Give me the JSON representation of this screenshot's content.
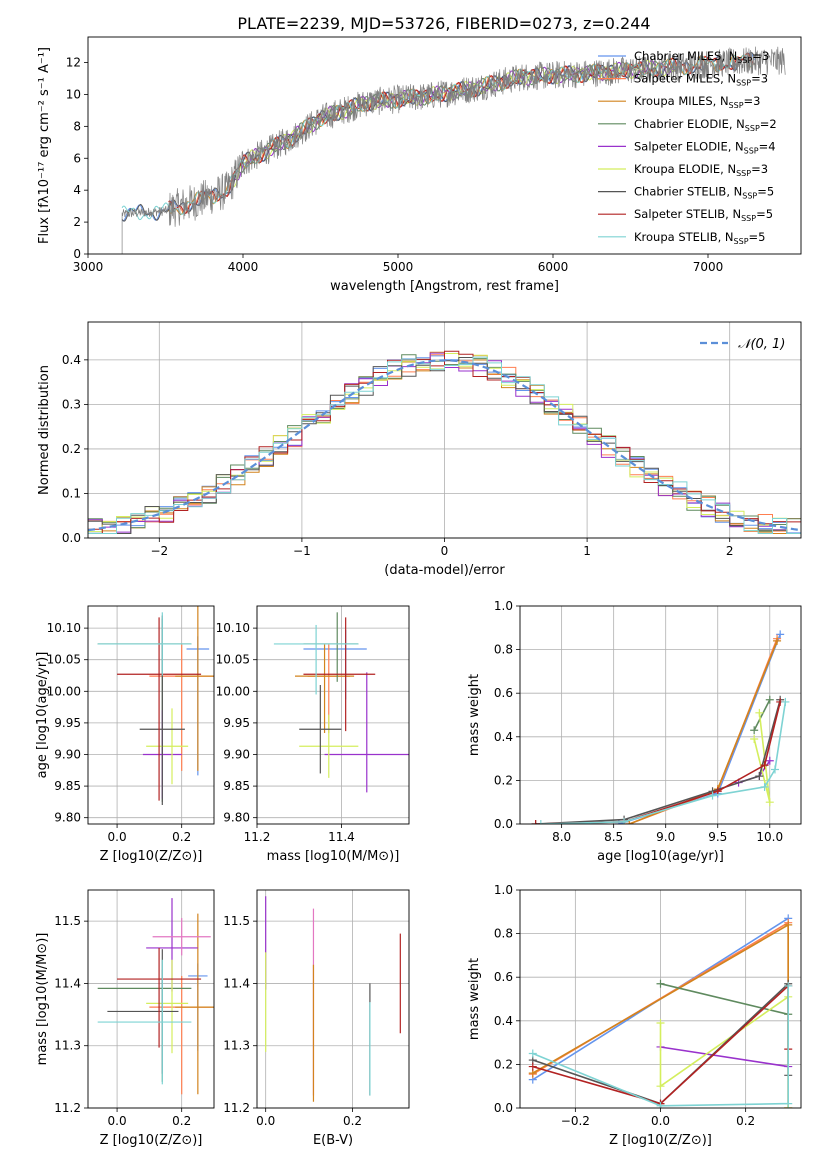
{
  "figure": {
    "title": "PLATE=2239, MJD=53726, FIBERID=0273, z=0.244"
  },
  "chart_data": [
    {
      "id": "spectrum",
      "type": "line",
      "xlabel": "wavelength [Angstrom, rest frame]",
      "ylabel": "Flux [fλ10⁻¹⁷ erg cm⁻² s⁻¹ A⁻¹]",
      "xlim": [
        3000,
        7600
      ],
      "ylim": [
        0,
        13.6
      ],
      "xticks": [
        3000,
        4000,
        5000,
        6000,
        7000
      ],
      "yticks": [
        0,
        2,
        4,
        6,
        8,
        10,
        12
      ],
      "grid": false,
      "legend_position": "right",
      "legend": [
        {
          "label": "Chabrier MILES, N",
          "sub": "SSP",
          "suffix": "=3",
          "color": "#6495ed"
        },
        {
          "label": "Salpeter MILES, N",
          "sub": "SSP",
          "suffix": "=3",
          "color": "#ff7f50"
        },
        {
          "label": "Kroupa MILES, N",
          "sub": "SSP",
          "suffix": "=3",
          "color": "#d2841e"
        },
        {
          "label": "Chabrier ELODIE, N",
          "sub": "SSP",
          "suffix": "=2",
          "color": "#5f8a5f"
        },
        {
          "label": "Salpeter ELODIE, N",
          "sub": "SSP",
          "suffix": "=4",
          "color": "#9932cc"
        },
        {
          "label": "Kroupa ELODIE, N",
          "sub": "SSP",
          "suffix": "=3",
          "color": "#d4ee5e"
        },
        {
          "label": "Chabrier STELIB, N",
          "sub": "SSP",
          "suffix": "=5",
          "color": "#555555"
        },
        {
          "label": "Salpeter STELIB, N",
          "sub": "SSP",
          "suffix": "=5",
          "color": "#b22222"
        },
        {
          "label": "Kroupa STELIB, N",
          "sub": "SSP",
          "suffix": "=5",
          "color": "#7ed3d3"
        }
      ],
      "data_color": "#808080",
      "continuum": [
        [
          3220,
          2.5
        ],
        [
          3500,
          2.7
        ],
        [
          3700,
          3.3
        ],
        [
          3900,
          4.0
        ],
        [
          4000,
          5.7
        ],
        [
          4300,
          7.2
        ],
        [
          4500,
          8.5
        ],
        [
          4800,
          9.5
        ],
        [
          5200,
          9.9
        ],
        [
          5500,
          10.4
        ],
        [
          5800,
          11.1
        ],
        [
          6200,
          11.3
        ],
        [
          6600,
          11.6
        ],
        [
          7000,
          11.9
        ],
        [
          7300,
          12.1
        ]
      ],
      "model_ranges": [
        {
          "from": 3220,
          "to": 7300
        },
        {
          "from": 3520,
          "to": 7300
        },
        {
          "from": 3520,
          "to": 7300
        },
        {
          "from": 3930,
          "to": 6800
        },
        {
          "from": 3930,
          "to": 6800
        },
        {
          "from": 3930,
          "to": 6800
        },
        {
          "from": 3220,
          "to": 7300
        },
        {
          "from": 3520,
          "to": 7300
        },
        {
          "from": 3220,
          "to": 7300
        }
      ]
    },
    {
      "id": "residuals",
      "type": "line",
      "xlabel": "(data-model)/error",
      "ylabel": "Normed distribution",
      "xlim": [
        -2.5,
        2.5
      ],
      "ylim": [
        0,
        0.485
      ],
      "xticks": [
        -2,
        -1,
        0,
        1,
        2
      ],
      "yticks": [
        0.0,
        0.1,
        0.2,
        0.3,
        0.4
      ],
      "grid": true,
      "legend_position": "top-right",
      "reference": {
        "label": "𝒩(0, 1)",
        "mean": 0,
        "sigma": 1,
        "color": "#5b8fd8"
      },
      "hist_colors": [
        "#6495ed",
        "#ff7f50",
        "#d2841e",
        "#5f8a5f",
        "#9932cc",
        "#d4ee5e",
        "#555555",
        "#b22222",
        "#7ed3d3"
      ]
    },
    {
      "id": "age_vs_Z",
      "type": "scatter",
      "xlabel": "Z [log10(Z/Z⊙)]",
      "ylabel": "age  [log10(age/yr)]",
      "xlim": [
        -0.09,
        0.3
      ],
      "ylim": [
        9.79,
        10.135
      ],
      "xticks": [
        0.0,
        0.2
      ],
      "yticks": [
        9.8,
        9.85,
        9.9,
        9.95,
        10.0,
        10.05,
        10.1
      ],
      "grid": true,
      "points": [
        {
          "x": 0.25,
          "y": 10.067,
          "xerr": [
            0.035,
            0.035
          ],
          "yerr": [
            0.2,
            0.02
          ],
          "color": "#6495ed"
        },
        {
          "x": 0.2,
          "y": 10.024,
          "xerr": [
            0.1,
            0.1
          ],
          "yerr": [
            0.15,
            0.05
          ],
          "color": "#ff7f50"
        },
        {
          "x": 0.25,
          "y": 10.024,
          "xerr": [
            0.07,
            0.07
          ],
          "yerr": [
            0.15,
            0.15
          ],
          "color": "#d2841e"
        },
        {
          "x": 0.14,
          "y": 10.075,
          "xerr": [
            0.2,
            0.09
          ],
          "yerr": [
            0.25,
            0.04
          ],
          "color": "#5f8a5f"
        },
        {
          "x": 0.14,
          "y": 9.9,
          "xerr": [
            0.06,
            0.06
          ],
          "yerr": [
            0.07,
            0.07
          ],
          "color": "#9932cc"
        },
        {
          "x": 0.17,
          "y": 9.913,
          "xerr": [
            0.08,
            0.05
          ],
          "yerr": [
            0.06,
            0.06
          ],
          "color": "#d4ee5e"
        },
        {
          "x": 0.14,
          "y": 9.94,
          "xerr": [
            0.07,
            0.07
          ],
          "yerr": [
            0.12,
            0.18
          ],
          "color": "#555555"
        },
        {
          "x": 0.13,
          "y": 10.027,
          "xerr": [
            0.13,
            0.13
          ],
          "yerr": [
            0.2,
            0.09
          ],
          "color": "#b22222"
        },
        {
          "x": 0.14,
          "y": 10.075,
          "xerr": [
            0.2,
            0.09
          ],
          "yerr": [
            0.05,
            0.05
          ],
          "color": "#7ed3d3"
        }
      ]
    },
    {
      "id": "age_vs_mass",
      "type": "scatter",
      "xlabel": "mass [log10(M/M⊙)]",
      "ylabel": "",
      "xlim": [
        11.2,
        11.56
      ],
      "ylim": [
        9.79,
        10.135
      ],
      "xticks": [
        11.2,
        11.4
      ],
      "yticks": [
        9.8,
        9.85,
        9.9,
        9.95,
        10.0,
        10.05,
        10.1
      ],
      "grid": true,
      "points": [
        {
          "x": 11.41,
          "y": 10.067,
          "xerr": [
            0.1,
            0.05
          ],
          "yerr": [
            0.08,
            0.03
          ],
          "color": "#6495ed"
        },
        {
          "x": 11.37,
          "y": 10.024,
          "xerr": [
            0.05,
            0.05
          ],
          "yerr": [
            0.09,
            0.05
          ],
          "color": "#ff7f50"
        },
        {
          "x": 11.36,
          "y": 10.024,
          "xerr": [
            0.07,
            0.07
          ],
          "yerr": [
            0.09,
            0.05
          ],
          "color": "#d2841e"
        },
        {
          "x": 11.39,
          "y": 10.075,
          "xerr": [
            0.08,
            0.05
          ],
          "yerr": [
            0.06,
            0.05
          ],
          "color": "#5f8a5f"
        },
        {
          "x": 11.46,
          "y": 9.9,
          "xerr": [
            0.1,
            0.1
          ],
          "yerr": [
            0.06,
            0.13
          ],
          "color": "#9932cc"
        },
        {
          "x": 11.37,
          "y": 9.913,
          "xerr": [
            0.07,
            0.07
          ],
          "yerr": [
            0.05,
            0.05
          ],
          "color": "#d4ee5e"
        },
        {
          "x": 11.35,
          "y": 9.94,
          "xerr": [
            0.05,
            0.05
          ],
          "yerr": [
            0.07,
            0.07
          ],
          "color": "#555555"
        },
        {
          "x": 11.41,
          "y": 10.027,
          "xerr": [
            0.1,
            0.07
          ],
          "yerr": [
            0.09,
            0.09
          ],
          "color": "#b22222"
        },
        {
          "x": 11.34,
          "y": 10.075,
          "xerr": [
            0.1,
            0.1
          ],
          "yerr": [
            0.08,
            0.03
          ],
          "color": "#7ed3d3"
        }
      ]
    },
    {
      "id": "weight_vs_age",
      "type": "line",
      "xlabel": "age  [log10(age/yr)]",
      "ylabel": "mass weight",
      "xlim": [
        7.6,
        10.3
      ],
      "ylim": [
        0,
        1.0
      ],
      "xticks": [
        8.0,
        8.5,
        9.0,
        9.5,
        10.0
      ],
      "yticks": [
        0.0,
        0.2,
        0.4,
        0.6,
        0.8,
        1.0
      ],
      "grid": true,
      "series": [
        {
          "color": "#6495ed",
          "x": [
            8.55,
            9.5,
            10.1
          ],
          "y": [
            0.0,
            0.14,
            0.87
          ]
        },
        {
          "color": "#ff7f50",
          "x": [
            8.65,
            9.5,
            10.07
          ],
          "y": [
            0.0,
            0.155,
            0.85
          ]
        },
        {
          "color": "#d2841e",
          "x": [
            8.65,
            9.5,
            10.07
          ],
          "y": [
            0.0,
            0.16,
            0.84
          ]
        },
        {
          "color": "#5f8a5f",
          "x": [
            9.85,
            10.0
          ],
          "y": [
            0.43,
            0.57
          ]
        },
        {
          "color": "#9932cc",
          "x": [
            9.7,
            9.9,
            10.0
          ],
          "y": [
            0.19,
            0.22,
            0.29
          ]
        },
        {
          "color": "#d4ee5e",
          "x": [
            9.9,
            10.0,
            9.85
          ],
          "y": [
            0.51,
            0.1,
            0.39
          ]
        },
        {
          "color": "#555555",
          "x": [
            7.75,
            8.6,
            9.45,
            9.9,
            10.1
          ],
          "y": [
            0.0,
            0.02,
            0.15,
            0.22,
            0.57
          ]
        },
        {
          "color": "#b22222",
          "x": [
            7.75,
            8.6,
            9.5,
            9.95,
            10.1
          ],
          "y": [
            0.0,
            0.01,
            0.15,
            0.27,
            0.56
          ]
        },
        {
          "color": "#7ed3d3",
          "x": [
            7.8,
            8.6,
            9.45,
            9.95,
            10.05,
            10.15
          ],
          "y": [
            0.0,
            0.01,
            0.13,
            0.17,
            0.25,
            0.56
          ]
        }
      ]
    },
    {
      "id": "mass_vs_Z",
      "type": "scatter",
      "xlabel": "Z [log10(Z/Z⊙)]",
      "ylabel": "mass [log10(M/M⊙)]",
      "xlim": [
        -0.09,
        0.3
      ],
      "ylim": [
        11.2,
        11.55
      ],
      "xticks": [
        0.0,
        0.2
      ],
      "yticks": [
        11.2,
        11.3,
        11.4,
        11.5
      ],
      "grid": true,
      "points": [
        {
          "x": 0.25,
          "y": 11.412,
          "xerr": [
            0.03,
            0.03
          ],
          "yerr": [
            0.12,
            0.02
          ],
          "color": "#6495ed"
        },
        {
          "x": 0.2,
          "y": 11.362,
          "xerr": [
            0.1,
            0.1
          ],
          "yerr": [
            0.14,
            0.05
          ],
          "color": "#ff7f50"
        },
        {
          "x": 0.25,
          "y": 11.362,
          "xerr": [
            0.07,
            0.07
          ],
          "yerr": [
            0.14,
            0.15
          ],
          "color": "#d2841e"
        },
        {
          "x": 0.14,
          "y": 11.392,
          "xerr": [
            0.2,
            0.09
          ],
          "yerr": [
            0.15,
            0.03
          ],
          "color": "#5f8a5f"
        },
        {
          "x": 0.17,
          "y": 11.457,
          "xerr": [
            0.08,
            0.08
          ],
          "yerr": [
            0.07,
            0.08
          ],
          "color": "#9932cc"
        },
        {
          "x": 0.17,
          "y": 11.368,
          "xerr": [
            0.08,
            0.05
          ],
          "yerr": [
            0.08,
            0.07
          ],
          "color": "#d4ee5e"
        },
        {
          "x": 0.14,
          "y": 11.355,
          "xerr": [
            0.17,
            0.05
          ],
          "yerr": [
            0.1,
            0.1
          ],
          "color": "#555555"
        },
        {
          "x": 0.13,
          "y": 11.407,
          "xerr": [
            0.13,
            0.13
          ],
          "yerr": [
            0.11,
            0.05
          ],
          "color": "#b22222"
        },
        {
          "x": 0.14,
          "y": 11.338,
          "xerr": [
            0.2,
            0.09
          ],
          "yerr": [
            0.1,
            0.1
          ],
          "color": "#7ed3d3"
        },
        {
          "x": 0.2,
          "y": 11.475,
          "xerr": [
            0.09,
            0.09
          ],
          "yerr": [
            0.03,
            0.03
          ],
          "color": "#e377c2"
        }
      ]
    },
    {
      "id": "mass_vs_ebv",
      "type": "scatter",
      "xlabel": "E(B-V)",
      "ylabel": "",
      "xlim": [
        -0.02,
        0.33
      ],
      "ylim": [
        11.2,
        11.55
      ],
      "xticks": [
        0.0,
        0.2
      ],
      "yticks": [
        11.2,
        11.3,
        11.4,
        11.5
      ],
      "grid": true,
      "points": [
        {
          "x": 0.0,
          "y": 11.45,
          "xerr": [
            0,
            0
          ],
          "yerr": [
            0.06,
            0.09
          ],
          "color": "#9932cc"
        },
        {
          "x": 0.0,
          "y": 11.37,
          "xerr": [
            0,
            0
          ],
          "yerr": [
            0.08,
            0.08
          ],
          "color": "#d4ee5e"
        },
        {
          "x": 0.11,
          "y": 11.4,
          "xerr": [
            0,
            0
          ],
          "yerr": [
            0.18,
            0.12
          ],
          "color": "#e377c2"
        },
        {
          "x": 0.11,
          "y": 11.33,
          "xerr": [
            0,
            0
          ],
          "yerr": [
            0.12,
            0.1
          ],
          "color": "#d2841e"
        },
        {
          "x": 0.24,
          "y": 11.3,
          "xerr": [
            0,
            0
          ],
          "yerr": [
            0.08,
            0.1
          ],
          "color": "#555555"
        },
        {
          "x": 0.24,
          "y": 11.27,
          "xerr": [
            0,
            0
          ],
          "yerr": [
            0.05,
            0.1
          ],
          "color": "#7ed3d3"
        },
        {
          "x": 0.31,
          "y": 11.4,
          "xerr": [
            0,
            0
          ],
          "yerr": [
            0.08,
            0.08
          ],
          "color": "#b22222"
        }
      ]
    },
    {
      "id": "weight_vs_Z",
      "type": "line",
      "xlabel": "Z [log10(Z/Z⊙)]",
      "ylabel": "mass weight",
      "xlim": [
        -0.33,
        0.33
      ],
      "ylim": [
        0,
        1.0
      ],
      "xticks": [
        -0.2,
        0.0,
        0.2
      ],
      "yticks": [
        0.0,
        0.2,
        0.4,
        0.6,
        0.8,
        1.0
      ],
      "grid": true,
      "series": [
        {
          "color": "#6495ed",
          "x": [
            -0.3,
            0.3
          ],
          "y": [
            0.13,
            0.87
          ]
        },
        {
          "color": "#ff7f50",
          "x": [
            -0.3,
            0.3,
            0.3
          ],
          "y": [
            0.155,
            0.85,
            0.0
          ]
        },
        {
          "color": "#d2841e",
          "x": [
            -0.3,
            0.3,
            0.3
          ],
          "y": [
            0.16,
            0.84,
            0.0
          ]
        },
        {
          "color": "#5f8a5f",
          "x": [
            0.0,
            0.3
          ],
          "y": [
            0.57,
            0.43
          ]
        },
        {
          "color": "#9932cc",
          "x": [
            0.0,
            0.3
          ],
          "y": [
            0.28,
            0.19
          ]
        },
        {
          "color": "#d4ee5e",
          "x": [
            0.0,
            0.0,
            0.3,
            0.3
          ],
          "y": [
            0.39,
            0.1,
            0.51,
            0.0
          ]
        },
        {
          "color": "#555555",
          "x": [
            -0.3,
            0.0,
            0.3,
            0.3
          ],
          "y": [
            0.22,
            0.02,
            0.57,
            0.15
          ]
        },
        {
          "color": "#b22222",
          "x": [
            -0.3,
            0.0,
            0.3,
            0.3
          ],
          "y": [
            0.19,
            0.02,
            0.56,
            0.27
          ]
        },
        {
          "color": "#7ed3d3",
          "x": [
            -0.3,
            0.0,
            0.3,
            0.3
          ],
          "y": [
            0.25,
            0.01,
            0.02,
            0.56
          ]
        }
      ]
    }
  ]
}
